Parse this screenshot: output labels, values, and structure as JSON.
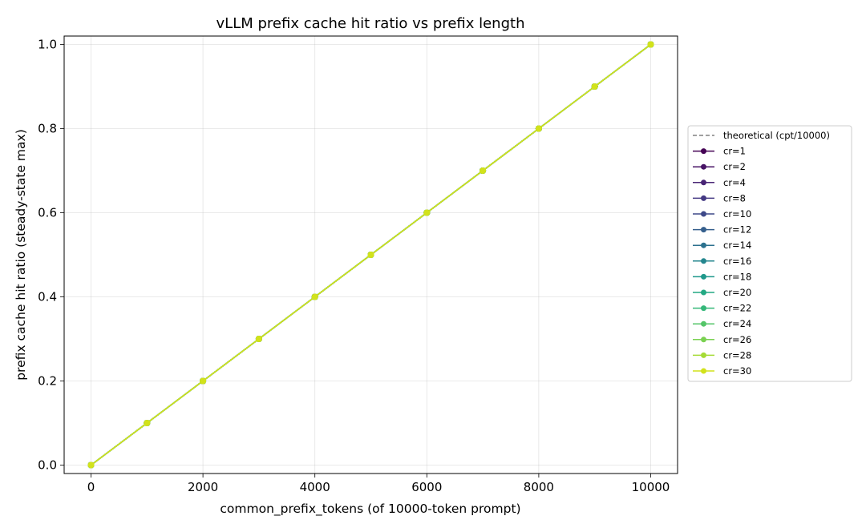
{
  "chart_data": {
    "type": "line",
    "title": "vLLM prefix cache hit ratio vs prefix length",
    "xlabel": "common_prefix_tokens (of 10000-token prompt)",
    "ylabel": "prefix cache hit ratio (steady-state max)",
    "xlim": [
      -480,
      10480
    ],
    "ylim": [
      -0.02,
      1.02
    ],
    "xticks": [
      0,
      2000,
      4000,
      6000,
      8000,
      10000
    ],
    "xtick_labels": [
      "0",
      "2000",
      "4000",
      "6000",
      "8000",
      "10000"
    ],
    "yticks": [
      0.0,
      0.2,
      0.4,
      0.6,
      0.8,
      1.0
    ],
    "ytick_labels": [
      "0.0",
      "0.2",
      "0.4",
      "0.6",
      "0.8",
      "1.0"
    ],
    "grid": true,
    "legend_position": "outside-right",
    "x": [
      0,
      1000,
      2000,
      3000,
      4000,
      5000,
      6000,
      7000,
      8000,
      9000,
      10000
    ],
    "theoretical": {
      "name": "theoretical (cpt/10000)",
      "values": [
        0.0,
        0.1,
        0.2,
        0.3,
        0.4,
        0.5,
        0.6,
        0.7,
        0.8,
        0.9,
        1.0
      ],
      "color": "#808080",
      "style": "dashed"
    },
    "series": [
      {
        "name": "cr=1",
        "color": "#440154",
        "values": [
          0.0,
          0.1,
          0.2,
          0.3,
          0.4,
          0.5,
          0.6,
          0.7,
          0.8,
          0.9,
          1.0
        ]
      },
      {
        "name": "cr=2",
        "color": "#471365",
        "values": [
          0.0,
          0.1,
          0.2,
          0.3,
          0.4,
          0.5,
          0.6,
          0.7,
          0.8,
          0.9,
          1.0
        ]
      },
      {
        "name": "cr=4",
        "color": "#482475",
        "values": [
          0.0,
          0.1,
          0.2,
          0.3,
          0.4,
          0.5,
          0.6,
          0.7,
          0.8,
          0.9,
          1.0
        ]
      },
      {
        "name": "cr=8",
        "color": "#443983",
        "values": [
          0.0,
          0.1,
          0.2,
          0.3,
          0.4,
          0.5,
          0.6,
          0.7,
          0.8,
          0.9,
          1.0
        ]
      },
      {
        "name": "cr=10",
        "color": "#3e4989",
        "values": [
          0.0,
          0.1,
          0.2,
          0.3,
          0.4,
          0.5,
          0.6,
          0.7,
          0.8,
          0.9,
          1.0
        ]
      },
      {
        "name": "cr=12",
        "color": "#355f8d",
        "values": [
          0.0,
          0.1,
          0.2,
          0.3,
          0.4,
          0.5,
          0.6,
          0.7,
          0.8,
          0.9,
          1.0
        ]
      },
      {
        "name": "cr=14",
        "color": "#2c718e",
        "values": [
          0.0,
          0.1,
          0.2,
          0.3,
          0.4,
          0.5,
          0.6,
          0.7,
          0.8,
          0.9,
          1.0
        ]
      },
      {
        "name": "cr=16",
        "color": "#24868e",
        "values": [
          0.0,
          0.1,
          0.2,
          0.3,
          0.4,
          0.5,
          0.6,
          0.7,
          0.8,
          0.9,
          1.0
        ]
      },
      {
        "name": "cr=18",
        "color": "#1f988b",
        "values": [
          0.0,
          0.1,
          0.2,
          0.3,
          0.4,
          0.5,
          0.6,
          0.7,
          0.8,
          0.9,
          1.0
        ]
      },
      {
        "name": "cr=20",
        "color": "#23a983",
        "values": [
          0.0,
          0.1,
          0.2,
          0.3,
          0.4,
          0.5,
          0.6,
          0.7,
          0.8,
          0.9,
          1.0
        ]
      },
      {
        "name": "cr=22",
        "color": "#35b779",
        "values": [
          0.0,
          0.1,
          0.2,
          0.3,
          0.4,
          0.5,
          0.6,
          0.7,
          0.8,
          0.9,
          1.0
        ]
      },
      {
        "name": "cr=24",
        "color": "#54c568",
        "values": [
          0.0,
          0.1,
          0.2,
          0.3,
          0.4,
          0.5,
          0.6,
          0.7,
          0.8,
          0.9,
          1.0
        ]
      },
      {
        "name": "cr=26",
        "color": "#7ad151",
        "values": [
          0.0,
          0.1,
          0.2,
          0.3,
          0.4,
          0.5,
          0.6,
          0.7,
          0.8,
          0.9,
          1.0
        ]
      },
      {
        "name": "cr=28",
        "color": "#a5db36",
        "values": [
          0.0,
          0.1,
          0.2,
          0.3,
          0.4,
          0.5,
          0.6,
          0.7,
          0.8,
          0.9,
          1.0
        ]
      },
      {
        "name": "cr=30",
        "color": "#d2e21b",
        "values": [
          0.0,
          0.1,
          0.2,
          0.3,
          0.4,
          0.5,
          0.6,
          0.7,
          0.8,
          0.9,
          1.0
        ]
      }
    ]
  }
}
